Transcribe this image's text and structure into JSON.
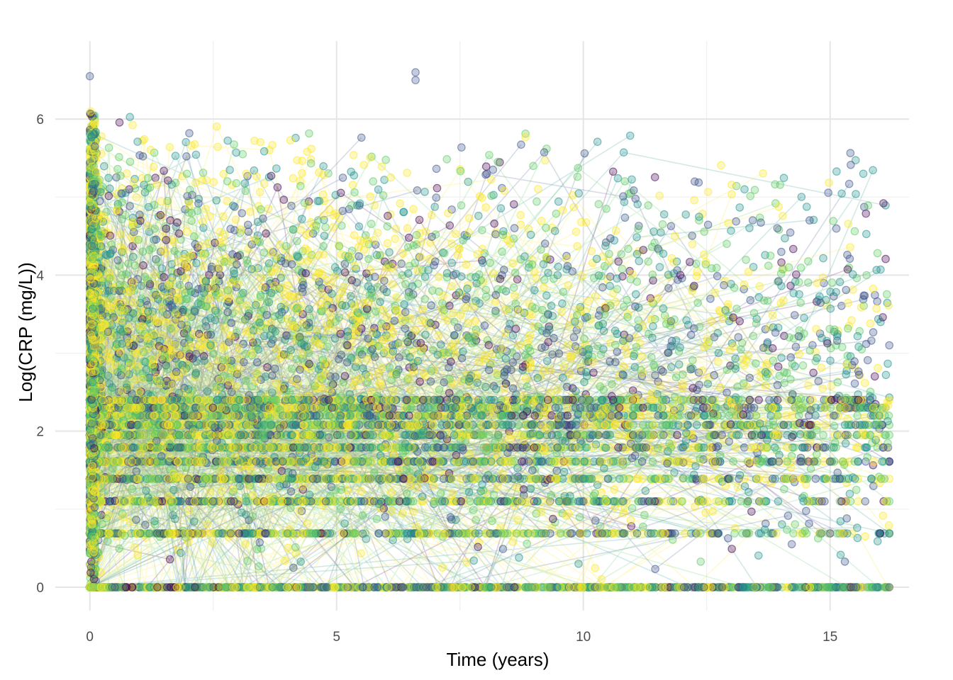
{
  "chart_data": {
    "type": "scatter",
    "subtype": "spaghetti line plot with points, one line per subject, colored by subject (viridis palette)",
    "title": "",
    "xlabel": "Time (years)",
    "ylabel": "Log(CRP (mg/L))",
    "xlim": [
      -0.7,
      16.6
    ],
    "ylim": [
      -0.3,
      7.0
    ],
    "x_ticks": [
      0,
      5,
      10,
      15
    ],
    "x_tick_labels": [
      "0",
      "5",
      "10",
      "15"
    ],
    "y_ticks": [
      0,
      2,
      4,
      6
    ],
    "y_tick_labels": [
      "0",
      "2",
      "4",
      "6"
    ],
    "grid": true,
    "legend": "none",
    "palette": [
      "#440154",
      "#3b528b",
      "#21918c",
      "#5ec962",
      "#fde725"
    ],
    "point_alpha": 0.3,
    "line_alpha": 0.2,
    "x_range_observed": [
      0,
      16.2
    ],
    "y_range_observed": [
      0,
      6.6
    ],
    "banded_levels": [
      0,
      0.69,
      1.1,
      1.39,
      1.61,
      1.79,
      1.95,
      2.08,
      2.2,
      2.3,
      2.4
    ],
    "notable_points": [
      {
        "x": 6.6,
        "y": 6.6
      },
      {
        "x": 6.6,
        "y": 6.5
      },
      {
        "x": 0.0,
        "y": 6.55
      },
      {
        "x": 16.2,
        "y": 3.1
      },
      {
        "x": 16.2,
        "y": 0.0
      }
    ]
  }
}
